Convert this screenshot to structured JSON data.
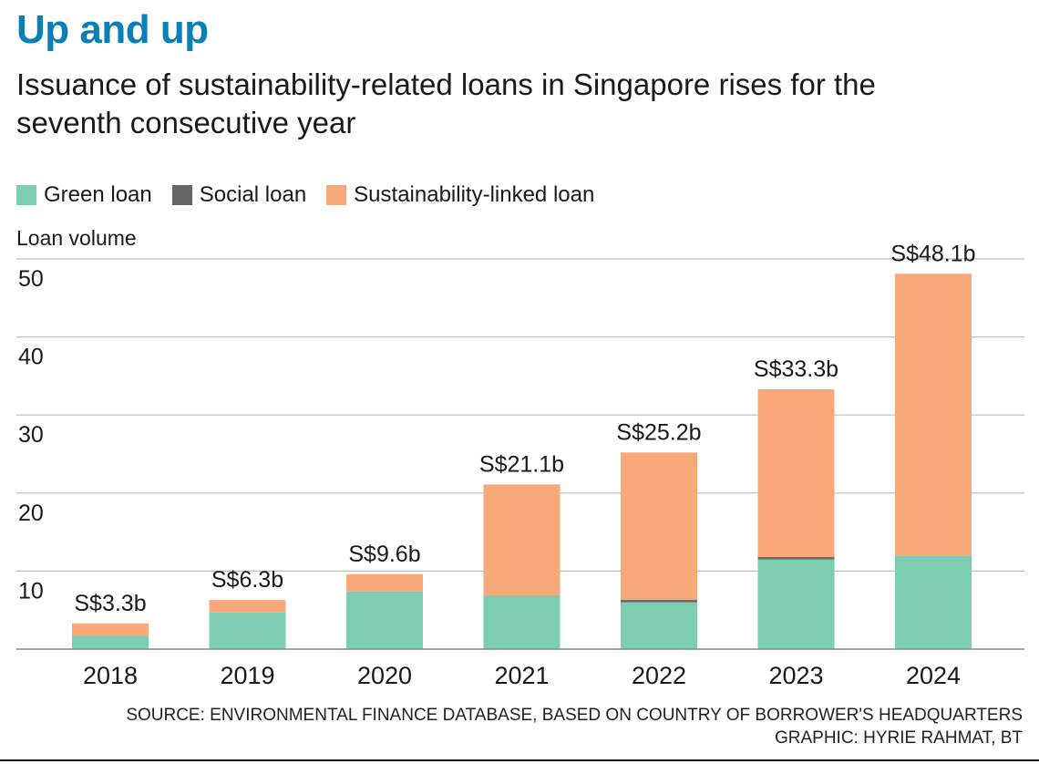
{
  "header": {
    "title": "Up and up",
    "subtitle": "Issuance of sustainability-related loans in Singapore rises for the seventh consecutive year"
  },
  "chart_data": {
    "type": "bar",
    "stacked": true,
    "categories": [
      "2018",
      "2019",
      "2020",
      "2021",
      "2022",
      "2023",
      "2024"
    ],
    "series": [
      {
        "name": "Green loan",
        "color": "#7dcdb3",
        "values": [
          1.7,
          4.7,
          7.4,
          6.9,
          6.0,
          11.5,
          12.0
        ]
      },
      {
        "name": "Social loan",
        "color": "#666666",
        "values": [
          0,
          0,
          0,
          0,
          0.3,
          0.3,
          0
        ]
      },
      {
        "name": "Sustainability-linked loan",
        "color": "#f7a97a",
        "values": [
          1.6,
          1.6,
          2.2,
          14.2,
          18.9,
          21.5,
          36.1
        ]
      }
    ],
    "totals_labels": [
      "S$3.3b",
      "S$6.3b",
      "S$9.6b",
      "S$21.1b",
      "S$25.2b",
      "S$33.3b",
      "S$48.1b"
    ],
    "totals": [
      3.3,
      6.3,
      9.6,
      21.1,
      25.2,
      33.3,
      48.1
    ],
    "ylabel": "Loan volume",
    "yticks": [
      10,
      20,
      30,
      40,
      50
    ],
    "ylim": [
      0,
      50
    ],
    "legend_position": "top-left",
    "grid": true
  },
  "footer": {
    "source": "SOURCE: ENVIRONMENTAL FINANCE DATABASE, BASED ON COUNTRY OF BORROWER'S HEADQUARTERS",
    "credit": "GRAPHIC: HYRIE RAHMAT, BT"
  }
}
